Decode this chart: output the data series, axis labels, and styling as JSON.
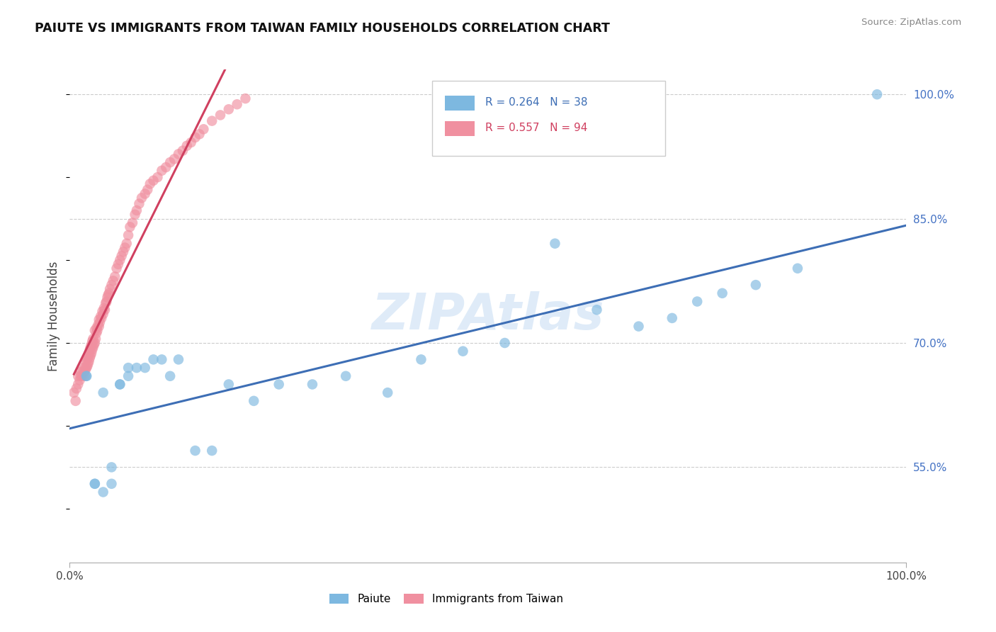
{
  "title": "PAIUTE VS IMMIGRANTS FROM TAIWAN FAMILY HOUSEHOLDS CORRELATION CHART",
  "source_text": "Source: ZipAtlas.com",
  "ylabel": "Family Households",
  "watermark": "ZIPAtlas",
  "xlim": [
    0.0,
    1.0
  ],
  "ylim": [
    0.435,
    1.03
  ],
  "yticks": [
    0.55,
    0.7,
    0.85,
    1.0
  ],
  "ytick_labels": [
    "55.0%",
    "70.0%",
    "85.0%",
    "100.0%"
  ],
  "xtick_vals": [
    0.0,
    1.0
  ],
  "xtick_labels": [
    "0.0%",
    "100.0%"
  ],
  "paiute_R": "0.264",
  "paiute_N": "38",
  "taiwan_R": "0.557",
  "taiwan_N": "94",
  "paiute_color": "#7db8e0",
  "taiwan_color": "#f090a0",
  "paiute_line_color": "#3d6eb5",
  "taiwan_line_color": "#d04060",
  "grid_color": "#cccccc",
  "bg_color": "#ffffff",
  "title_color": "#111111",
  "source_color": "#888888",
  "right_tick_color": "#4472c4",
  "paiute_x": [
    0.965,
    0.87,
    0.82,
    0.78,
    0.75,
    0.72,
    0.68,
    0.63,
    0.58,
    0.52,
    0.47,
    0.42,
    0.38,
    0.33,
    0.29,
    0.25,
    0.22,
    0.19,
    0.17,
    0.15,
    0.13,
    0.12,
    0.11,
    0.1,
    0.09,
    0.08,
    0.07,
    0.07,
    0.06,
    0.06,
    0.05,
    0.05,
    0.04,
    0.04,
    0.03,
    0.03,
    0.02,
    0.02
  ],
  "paiute_y": [
    1.0,
    0.79,
    0.77,
    0.76,
    0.75,
    0.73,
    0.72,
    0.74,
    0.82,
    0.7,
    0.69,
    0.68,
    0.64,
    0.66,
    0.65,
    0.65,
    0.63,
    0.65,
    0.57,
    0.57,
    0.68,
    0.66,
    0.68,
    0.68,
    0.67,
    0.67,
    0.66,
    0.67,
    0.65,
    0.65,
    0.55,
    0.53,
    0.52,
    0.64,
    0.53,
    0.53,
    0.66,
    0.66
  ],
  "taiwan_x": [
    0.005,
    0.007,
    0.008,
    0.01,
    0.01,
    0.012,
    0.013,
    0.013,
    0.015,
    0.015,
    0.017,
    0.018,
    0.018,
    0.019,
    0.019,
    0.02,
    0.02,
    0.021,
    0.021,
    0.022,
    0.022,
    0.023,
    0.023,
    0.024,
    0.024,
    0.025,
    0.025,
    0.026,
    0.026,
    0.027,
    0.027,
    0.028,
    0.028,
    0.029,
    0.03,
    0.03,
    0.031,
    0.032,
    0.032,
    0.033,
    0.034,
    0.035,
    0.035,
    0.036,
    0.037,
    0.038,
    0.039,
    0.04,
    0.041,
    0.042,
    0.043,
    0.044,
    0.045,
    0.046,
    0.047,
    0.048,
    0.05,
    0.052,
    0.054,
    0.056,
    0.058,
    0.06,
    0.062,
    0.064,
    0.066,
    0.068,
    0.07,
    0.072,
    0.075,
    0.078,
    0.08,
    0.083,
    0.086,
    0.09,
    0.093,
    0.096,
    0.1,
    0.105,
    0.11,
    0.115,
    0.12,
    0.125,
    0.13,
    0.135,
    0.14,
    0.145,
    0.15,
    0.155,
    0.16,
    0.17,
    0.18,
    0.19,
    0.2,
    0.21
  ],
  "taiwan_y": [
    0.64,
    0.63,
    0.645,
    0.65,
    0.66,
    0.655,
    0.66,
    0.665,
    0.66,
    0.67,
    0.665,
    0.66,
    0.67,
    0.668,
    0.678,
    0.67,
    0.68,
    0.672,
    0.682,
    0.675,
    0.685,
    0.678,
    0.688,
    0.682,
    0.692,
    0.685,
    0.695,
    0.688,
    0.698,
    0.692,
    0.702,
    0.695,
    0.705,
    0.698,
    0.7,
    0.715,
    0.705,
    0.712,
    0.718,
    0.715,
    0.722,
    0.72,
    0.728,
    0.725,
    0.732,
    0.73,
    0.738,
    0.735,
    0.742,
    0.74,
    0.748,
    0.75,
    0.755,
    0.758,
    0.76,
    0.765,
    0.77,
    0.775,
    0.78,
    0.79,
    0.795,
    0.8,
    0.805,
    0.81,
    0.815,
    0.82,
    0.83,
    0.84,
    0.845,
    0.855,
    0.86,
    0.868,
    0.875,
    0.88,
    0.885,
    0.892,
    0.896,
    0.9,
    0.908,
    0.912,
    0.918,
    0.922,
    0.928,
    0.932,
    0.938,
    0.942,
    0.948,
    0.952,
    0.958,
    0.968,
    0.975,
    0.982,
    0.988,
    0.995
  ]
}
